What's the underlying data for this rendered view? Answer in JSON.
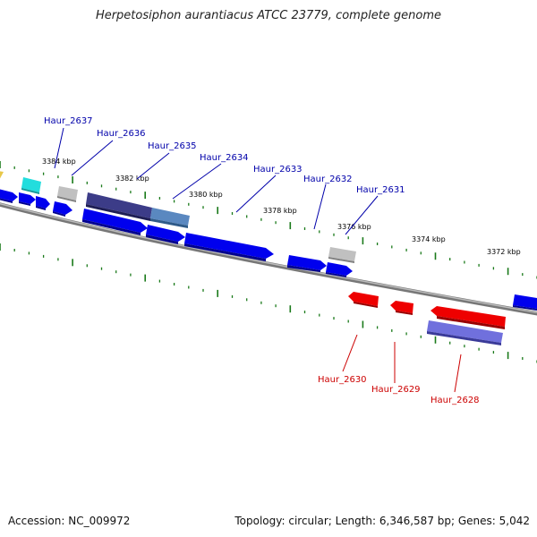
{
  "title": "Herpetosiphon aurantiacus ATCC 23779, complete genome",
  "footer": {
    "accession": "Accession: NC_009972",
    "summary": "Topology: circular; Length: 6,346,587 bp; Genes: 5,042"
  },
  "tick_labels": [
    "3384 kbp",
    "3382 kbp",
    "3380 kbp",
    "3378 kbp",
    "3376 kbp",
    "3374 kbp",
    "3372 kbp"
  ],
  "gene_labels": {
    "forward": [
      "Haur_2637",
      "Haur_2636",
      "Haur_2635",
      "Haur_2634",
      "Haur_2633",
      "Haur_2632",
      "Haur_2631"
    ],
    "reverse": [
      "Haur_2630",
      "Haur_2629",
      "Haur_2628"
    ]
  },
  "colors": {
    "forward_label": "#0000aa",
    "reverse_label": "#cc0000",
    "forward_gene": "#0000ee",
    "reverse_gene": "#ee0000",
    "backbone": "#888888",
    "tick": "#1a7a1a",
    "pseudo_gene": "#bbbbbb",
    "highlight_gene": "#22dddd"
  }
}
